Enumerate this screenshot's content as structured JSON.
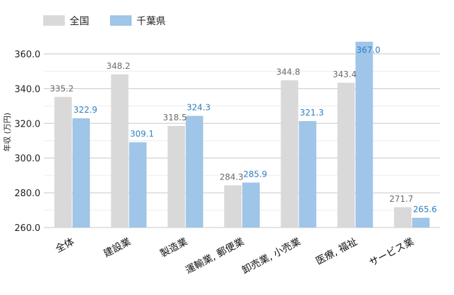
{
  "chart_data": {
    "type": "bar",
    "categories": [
      "全体",
      "建設業",
      "製造業",
      "運輸業, 郵便業",
      "卸売業, 小売業",
      "医療, 福祉",
      "サービス業"
    ],
    "series": [
      {
        "name": "全国",
        "values": [
          335.2,
          348.2,
          318.5,
          284.3,
          344.8,
          343.4,
          271.7
        ],
        "color": "#d9d9d9",
        "label_color": "#6b6b6b"
      },
      {
        "name": "千葉県",
        "values": [
          322.9,
          309.1,
          324.3,
          285.9,
          321.3,
          367.0,
          265.6
        ],
        "color": "#9fc5e8",
        "label_color": "#2e7fc4"
      }
    ],
    "ylabel": "年収 (万円)",
    "ylim": [
      260,
      367
    ],
    "yticks": [
      260,
      280,
      300,
      320,
      340,
      360
    ],
    "ytick_labels": [
      "260.0",
      "280.0",
      "300.0",
      "320.0",
      "340.0",
      "360.0"
    ],
    "grid": true,
    "legend_position": "top-left"
  }
}
